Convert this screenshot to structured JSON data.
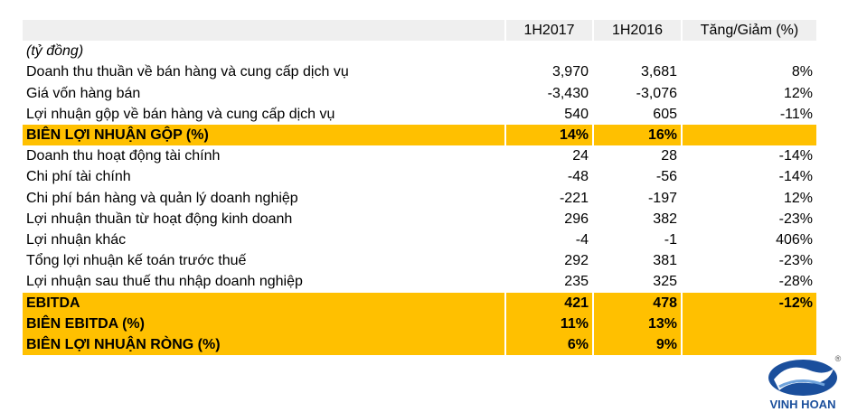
{
  "table": {
    "header": [
      "",
      "1H2017",
      "1H2016",
      "Tăng/Giảm (%)"
    ],
    "unit": "(tỷ đồng)",
    "highlight_color": "#ffc000",
    "rows": [
      {
        "cells": [
          "Doanh thu thuần về bán hàng và cung cấp dịch vụ",
          "3,970",
          "3,681",
          "8%"
        ]
      },
      {
        "cells": [
          "Giá vốn hàng bán",
          "-3,430",
          "-3,076",
          "12%"
        ]
      },
      {
        "cells": [
          "Lợi nhuận gộp về bán hàng và cung cấp dịch vụ",
          "540",
          "605",
          "-11%"
        ]
      },
      {
        "cells": [
          "BIÊN LỢI NHUẬN GỘP (%)",
          "14%",
          "16%",
          ""
        ],
        "highlight": true
      },
      {
        "cells": [
          "Doanh thu hoạt động tài chính",
          "24",
          "28",
          "-14%"
        ]
      },
      {
        "cells": [
          "Chi phí tài chính",
          "-48",
          "-56",
          "-14%"
        ]
      },
      {
        "cells": [
          "Chi phí bán hàng và quản lý doanh nghiệp",
          "-221",
          "-197",
          "12%"
        ]
      },
      {
        "cells": [
          "Lợi nhuận thuần từ hoạt động kinh doanh",
          "296",
          "382",
          "-23%"
        ]
      },
      {
        "cells": [
          "Lợi nhuận khác",
          "-4",
          "-1",
          "406%"
        ]
      },
      {
        "cells": [
          "Tổng lợi nhuận kế toán trước thuế",
          "292",
          "381",
          "-23%"
        ]
      },
      {
        "cells": [
          "Lợi nhuận sau thuế thu nhập doanh nghiệp",
          "235",
          "325",
          "-28%"
        ]
      },
      {
        "cells": [
          "EBITDA",
          "421",
          "478",
          "-12%"
        ],
        "highlight": true
      },
      {
        "cells": [
          "BIÊN EBITDA (%)",
          "11%",
          "13%",
          ""
        ],
        "highlight": true
      },
      {
        "cells": [
          "BIÊN LỢI NHUẬN RÒNG (%)",
          "6%",
          "9%",
          ""
        ],
        "highlight": true
      }
    ]
  },
  "logo": {
    "name": "VINH HOAN",
    "mark": "®"
  }
}
